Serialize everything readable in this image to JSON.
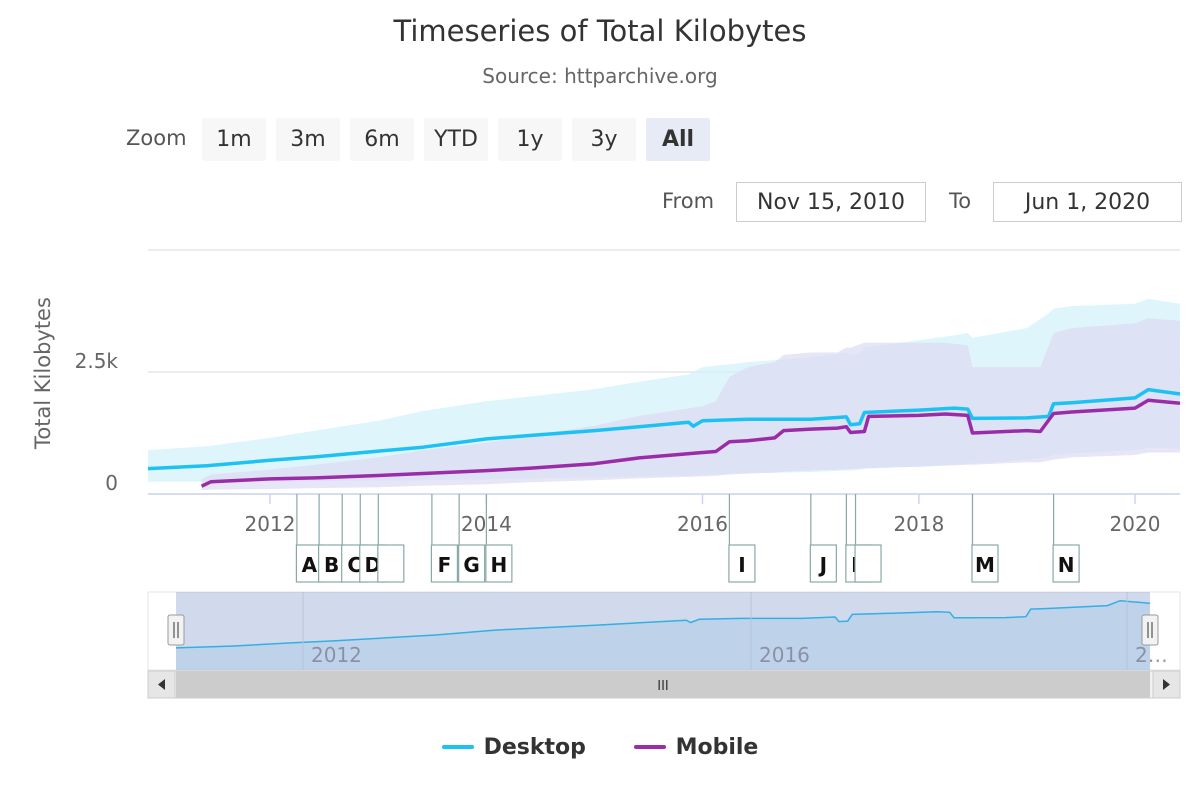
{
  "chart_data": {
    "type": "area",
    "title": "Timeseries of Total Kilobytes",
    "subtitle": "Source: httparchive.org",
    "ylabel": "Total Kilobytes",
    "xlabel": "",
    "xlim": [
      "2010-11-15",
      "2020-06-01"
    ],
    "ylim": [
      0,
      5000
    ],
    "y_ticks": [
      {
        "value": 0,
        "label": "0"
      },
      {
        "value": 2500,
        "label": "2.5k"
      }
    ],
    "x_ticks": [
      {
        "date": "2012-01-01",
        "label": "2012"
      },
      {
        "date": "2014-01-01",
        "label": "2014"
      },
      {
        "date": "2016-01-01",
        "label": "2016"
      },
      {
        "date": "2018-01-01",
        "label": "2018"
      },
      {
        "date": "2020-01-01",
        "label": "2020"
      }
    ],
    "grid": true,
    "legend_position": "bottom-center",
    "series": [
      {
        "name": "Desktop",
        "color": "#1ec2f2",
        "band_color": "#d4f1fb",
        "x": [
          "2010-11-15",
          "2011-06-01",
          "2012-01-01",
          "2012-06-01",
          "2013-01-01",
          "2013-06-01",
          "2014-01-01",
          "2014-06-01",
          "2015-01-01",
          "2015-06-01",
          "2015-11-15",
          "2015-12-01",
          "2016-01-01",
          "2016-06-01",
          "2017-01-01",
          "2017-05-01",
          "2017-05-15",
          "2017-06-15",
          "2017-07-01",
          "2018-01-01",
          "2018-05-01",
          "2018-06-15",
          "2018-07-01",
          "2019-01-01",
          "2019-03-15",
          "2019-04-01",
          "2019-06-01",
          "2020-01-01",
          "2020-02-15",
          "2020-06-01"
        ],
        "values": [
          520,
          580,
          690,
          760,
          880,
          960,
          1130,
          1200,
          1300,
          1380,
          1470,
          1390,
          1500,
          1530,
          1530,
          1580,
          1420,
          1440,
          1670,
          1720,
          1760,
          1740,
          1550,
          1560,
          1590,
          1850,
          1870,
          1970,
          2140,
          2050
        ],
        "band_high": [
          900,
          980,
          1150,
          1300,
          1500,
          1700,
          1900,
          2000,
          2150,
          2300,
          2450,
          2500,
          2600,
          2700,
          2800,
          2900,
          2850,
          2900,
          3000,
          3150,
          3250,
          3300,
          3200,
          3400,
          3700,
          3800,
          3850,
          3900,
          4000,
          3900
        ],
        "band_low": [
          250,
          250,
          250,
          260,
          270,
          280,
          300,
          320,
          340,
          360,
          380,
          380,
          400,
          420,
          450,
          480,
          480,
          500,
          520,
          560,
          600,
          620,
          620,
          700,
          750,
          800,
          830,
          900,
          950,
          930
        ]
      },
      {
        "name": "Mobile",
        "color": "#9b2ca8",
        "band_color": "#dcdcf2",
        "x": [
          "2011-05-15",
          "2011-06-15",
          "2012-01-01",
          "2012-06-01",
          "2013-01-01",
          "2013-06-01",
          "2014-01-01",
          "2014-06-01",
          "2015-01-01",
          "2015-06-01",
          "2016-01-01",
          "2016-02-15",
          "2016-04-01",
          "2016-06-01",
          "2016-09-01",
          "2016-10-01",
          "2017-01-01",
          "2017-04-01",
          "2017-05-01",
          "2017-05-15",
          "2017-07-01",
          "2017-07-15",
          "2018-01-01",
          "2018-04-01",
          "2018-06-15",
          "2018-07-01",
          "2019-01-01",
          "2019-02-15",
          "2019-04-01",
          "2019-06-01",
          "2020-01-01",
          "2020-02-15",
          "2020-06-01"
        ],
        "values": [
          160,
          250,
          310,
          330,
          380,
          420,
          480,
          530,
          620,
          740,
          850,
          870,
          1070,
          1090,
          1150,
          1300,
          1330,
          1350,
          1380,
          1260,
          1280,
          1590,
          1610,
          1640,
          1610,
          1250,
          1300,
          1280,
          1650,
          1680,
          1760,
          1920,
          1860
        ],
        "band_high": [
          300,
          400,
          500,
          600,
          750,
          900,
          1050,
          1200,
          1400,
          1600,
          1800,
          1900,
          2400,
          2600,
          2700,
          2850,
          2900,
          2900,
          3000,
          3000,
          3100,
          3100,
          3100,
          3100,
          3050,
          2600,
          2600,
          2600,
          3300,
          3400,
          3500,
          3600,
          3550
        ],
        "band_low": [
          80,
          90,
          100,
          120,
          140,
          170,
          200,
          240,
          280,
          320,
          360,
          370,
          400,
          420,
          440,
          460,
          480,
          500,
          510,
          510,
          520,
          530,
          560,
          580,
          600,
          600,
          650,
          650,
          700,
          750,
          800,
          850,
          850
        ]
      }
    ],
    "annotations": [
      {
        "date": "2012-04-01",
        "label": "A"
      },
      {
        "date": "2012-06-15",
        "label": "B"
      },
      {
        "date": "2012-09-01",
        "label": "C"
      },
      {
        "date": "2012-11-01",
        "label": "D"
      },
      {
        "date": "2013-01-01",
        "label": ""
      },
      {
        "date": "2013-07-01",
        "label": "F"
      },
      {
        "date": "2013-10-01",
        "label": "G"
      },
      {
        "date": "2014-01-01",
        "label": "H"
      },
      {
        "date": "2016-04-01",
        "label": "I"
      },
      {
        "date": "2017-01-01",
        "label": "J"
      },
      {
        "date": "2017-05-01",
        "label": "K"
      },
      {
        "date": "2017-06-01",
        "label": ""
      },
      {
        "date": "2018-07-01",
        "label": "M"
      },
      {
        "date": "2019-04-01",
        "label": "N"
      }
    ],
    "navigator": {
      "ticks": [
        "2012",
        "2016",
        "2…"
      ],
      "scrollbar_grip": "III"
    }
  },
  "zoom": {
    "label": "Zoom",
    "buttons": [
      {
        "label": "1m",
        "active": false
      },
      {
        "label": "3m",
        "active": false
      },
      {
        "label": "6m",
        "active": false
      },
      {
        "label": "YTD",
        "active": false
      },
      {
        "label": "1y",
        "active": false
      },
      {
        "label": "3y",
        "active": false
      },
      {
        "label": "All",
        "active": true
      }
    ]
  },
  "range": {
    "from_label": "From",
    "from_value": "Nov 15, 2010",
    "to_label": "To",
    "to_value": "Jun 1, 2020"
  }
}
